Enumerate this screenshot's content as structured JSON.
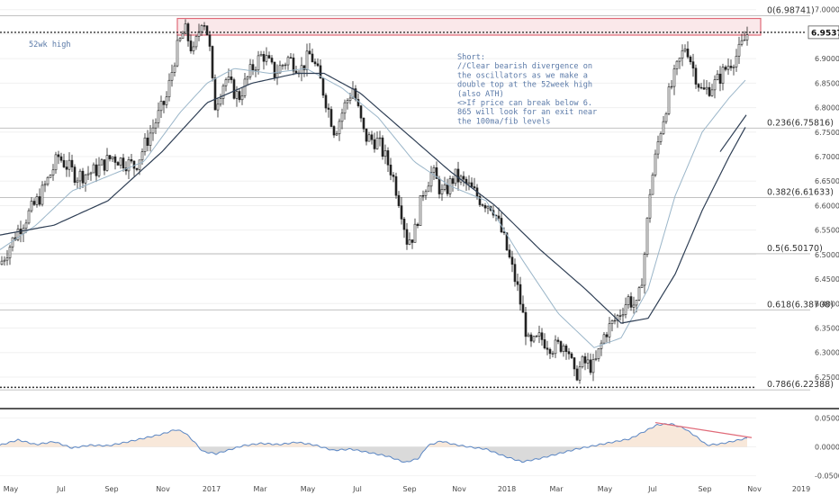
{
  "chart_data": {
    "type": "candlestick",
    "x_ticks": [
      "May",
      "Jul",
      "Sep",
      "Nov",
      "2017",
      "Mar",
      "May",
      "Jul",
      "Sep",
      "Nov",
      "2018",
      "Mar",
      "May",
      "Jul",
      "Sep",
      "Nov",
      "2019"
    ],
    "y_ticks": [
      "7.00000",
      "6.95000",
      "6.90000",
      "6.85000",
      "6.80000",
      "6.75000",
      "6.70000",
      "6.65000",
      "6.60000",
      "6.55000",
      "6.50000",
      "6.45000",
      "6.40000",
      "6.35000",
      "6.30000",
      "6.25000"
    ],
    "ylim": [
      6.215,
      7.005
    ],
    "last_price": "6.95376",
    "last_price_value": 6.95376,
    "fib_levels": [
      {
        "label": "0(6.98741)",
        "value": 6.98741
      },
      {
        "label": "0.236(6.75816)",
        "value": 6.75816
      },
      {
        "label": "0.382(6.61633)",
        "value": 6.61633
      },
      {
        "label": "0.5(6.50170)",
        "value": 6.5017
      },
      {
        "label": "0.618(6.38708)",
        "value": 6.38708
      },
      {
        "label": "0.786(6.22388)",
        "value": 6.22388
      }
    ],
    "support_line": 6.229,
    "resistance_zone": [
      6.948,
      6.982
    ],
    "labels": {
      "high_tag": "52wk high",
      "note_lines": [
        "Short:",
        "//Clear bearish divergence on",
        "the oscillators as we make a",
        "double top at the 52week high",
        "(also ATH)",
        "<>If price can break below 6.",
        "865 will look for an exit near",
        "the 100ma/fib levels"
      ]
    },
    "price_anchors": [
      [
        0,
        6.48
      ],
      [
        20,
        6.55
      ],
      [
        45,
        6.62
      ],
      [
        65,
        6.7
      ],
      [
        85,
        6.66
      ],
      [
        105,
        6.67
      ],
      [
        125,
        6.7
      ],
      [
        150,
        6.68
      ],
      [
        165,
        6.74
      ],
      [
        185,
        6.82
      ],
      [
        195,
        6.91
      ],
      [
        205,
        6.96
      ],
      [
        215,
        6.91
      ],
      [
        225,
        6.99
      ],
      [
        232,
        6.94
      ],
      [
        238,
        6.8
      ],
      [
        250,
        6.86
      ],
      [
        265,
        6.82
      ],
      [
        280,
        6.88
      ],
      [
        292,
        6.91
      ],
      [
        305,
        6.87
      ],
      [
        320,
        6.9
      ],
      [
        335,
        6.88
      ],
      [
        345,
        6.91
      ],
      [
        355,
        6.86
      ],
      [
        372,
        6.75
      ],
      [
        382,
        6.8
      ],
      [
        392,
        6.84
      ],
      [
        405,
        6.74
      ],
      [
        420,
        6.73
      ],
      [
        435,
        6.67
      ],
      [
        445,
        6.6
      ],
      [
        452,
        6.53
      ],
      [
        460,
        6.54
      ],
      [
        470,
        6.63
      ],
      [
        480,
        6.67
      ],
      [
        492,
        6.62
      ],
      [
        505,
        6.66
      ],
      [
        520,
        6.64
      ],
      [
        535,
        6.61
      ],
      [
        547,
        6.6
      ],
      [
        560,
        6.53
      ],
      [
        575,
        6.43
      ],
      [
        588,
        6.31
      ],
      [
        600,
        6.33
      ],
      [
        615,
        6.31
      ],
      [
        630,
        6.32
      ],
      [
        638,
        6.25
      ],
      [
        648,
        6.28
      ],
      [
        660,
        6.27
      ],
      [
        672,
        6.34
      ],
      [
        685,
        6.37
      ],
      [
        698,
        6.41
      ],
      [
        708,
        6.39
      ],
      [
        715,
        6.48
      ],
      [
        722,
        6.63
      ],
      [
        732,
        6.74
      ],
      [
        742,
        6.82
      ],
      [
        752,
        6.88
      ],
      [
        762,
        6.93
      ],
      [
        770,
        6.88
      ],
      [
        780,
        6.83
      ],
      [
        795,
        6.85
      ],
      [
        810,
        6.89
      ],
      [
        820,
        6.91
      ],
      [
        830,
        6.95
      ]
    ],
    "ma_fast_anchors": [
      [
        0,
        6.51
      ],
      [
        40,
        6.56
      ],
      [
        80,
        6.63
      ],
      [
        120,
        6.66
      ],
      [
        160,
        6.69
      ],
      [
        200,
        6.79
      ],
      [
        230,
        6.85
      ],
      [
        260,
        6.88
      ],
      [
        300,
        6.87
      ],
      [
        340,
        6.88
      ],
      [
        380,
        6.84
      ],
      [
        420,
        6.78
      ],
      [
        460,
        6.69
      ],
      [
        500,
        6.64
      ],
      [
        540,
        6.61
      ],
      [
        580,
        6.49
      ],
      [
        620,
        6.38
      ],
      [
        660,
        6.31
      ],
      [
        690,
        6.33
      ],
      [
        720,
        6.43
      ],
      [
        750,
        6.62
      ],
      [
        780,
        6.75
      ],
      [
        810,
        6.82
      ],
      [
        830,
        6.86
      ]
    ],
    "ma_slow_anchors": [
      [
        0,
        6.54
      ],
      [
        60,
        6.56
      ],
      [
        120,
        6.61
      ],
      [
        180,
        6.71
      ],
      [
        230,
        6.81
      ],
      [
        280,
        6.85
      ],
      [
        330,
        6.87
      ],
      [
        360,
        6.87
      ],
      [
        400,
        6.83
      ],
      [
        450,
        6.75
      ],
      [
        500,
        6.67
      ],
      [
        550,
        6.6
      ],
      [
        600,
        6.51
      ],
      [
        650,
        6.43
      ],
      [
        690,
        6.36
      ],
      [
        720,
        6.37
      ],
      [
        750,
        6.46
      ],
      [
        780,
        6.59
      ],
      [
        810,
        6.7
      ],
      [
        828,
        6.76
      ]
    ],
    "oscillator": {
      "y_ticks": [
        "0.05000",
        "0.00000",
        "-0.05000"
      ],
      "ylim": [
        -0.06,
        0.06
      ],
      "anchors": [
        [
          0,
          0.003
        ],
        [
          20,
          0.012
        ],
        [
          40,
          0.004
        ],
        [
          60,
          0.009
        ],
        [
          80,
          -0.002
        ],
        [
          100,
          0.003
        ],
        [
          120,
          0.002
        ],
        [
          140,
          0.008
        ],
        [
          160,
          0.015
        ],
        [
          180,
          0.022
        ],
        [
          195,
          0.03
        ],
        [
          205,
          0.025
        ],
        [
          215,
          0.01
        ],
        [
          225,
          -0.008
        ],
        [
          240,
          -0.012
        ],
        [
          255,
          -0.005
        ],
        [
          270,
          0.002
        ],
        [
          290,
          0.006
        ],
        [
          310,
          0.004
        ],
        [
          330,
          0.008
        ],
        [
          350,
          0.003
        ],
        [
          370,
          -0.006
        ],
        [
          390,
          -0.004
        ],
        [
          410,
          -0.01
        ],
        [
          430,
          -0.016
        ],
        [
          450,
          -0.027
        ],
        [
          465,
          -0.02
        ],
        [
          475,
          0.002
        ],
        [
          490,
          0.01
        ],
        [
          505,
          0.004
        ],
        [
          520,
          0.0
        ],
        [
          540,
          -0.004
        ],
        [
          560,
          -0.016
        ],
        [
          580,
          -0.026
        ],
        [
          600,
          -0.02
        ],
        [
          620,
          -0.012
        ],
        [
          640,
          -0.004
        ],
        [
          660,
          0.002
        ],
        [
          680,
          0.008
        ],
        [
          700,
          0.014
        ],
        [
          715,
          0.026
        ],
        [
          730,
          0.038
        ],
        [
          745,
          0.04
        ],
        [
          760,
          0.032
        ],
        [
          775,
          0.016
        ],
        [
          785,
          0.003
        ],
        [
          800,
          0.005
        ],
        [
          815,
          0.01
        ],
        [
          830,
          0.015
        ]
      ],
      "divergence": {
        "from": [
          728,
          0.042
        ],
        "to": [
          835,
          0.016
        ]
      }
    }
  }
}
